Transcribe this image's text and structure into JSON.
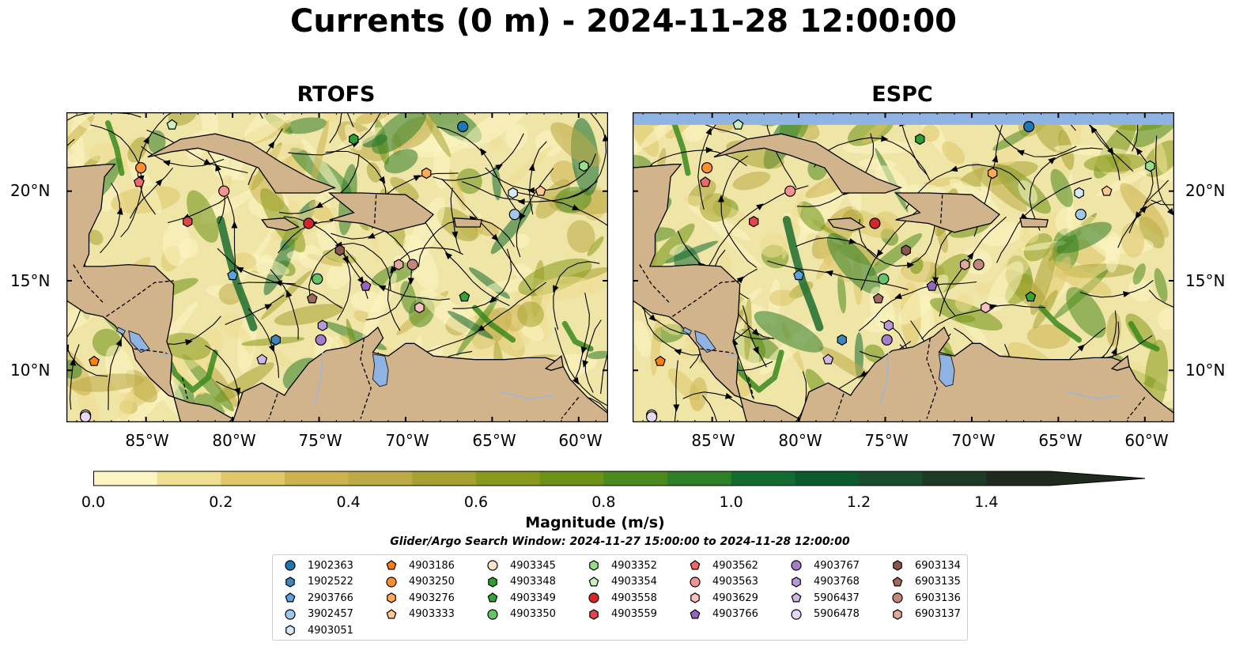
{
  "title": "Currents (0 m) - 2024-11-28 12:00:00",
  "panels": [
    {
      "id": "rtofs",
      "title": "RTOFS"
    },
    {
      "id": "espc",
      "title": "ESPC"
    }
  ],
  "axes": {
    "lon_ticks": [
      "85°W",
      "80°W",
      "75°W",
      "70°W",
      "65°W",
      "60°W"
    ],
    "lat_ticks": [
      "20°N",
      "15°N",
      "10°N"
    ],
    "lon_range": [
      -89.6,
      -58.3
    ],
    "lat_range": [
      7.1,
      24.4
    ]
  },
  "colorbar": {
    "label": "Magnitude (m/s)",
    "min": 0.0,
    "max": 1.5,
    "extend": "max",
    "ticks": [
      "0.0",
      "0.2",
      "0.4",
      "0.6",
      "0.8",
      "1.0",
      "1.2",
      "1.4"
    ],
    "colors": [
      "#fcf6c3",
      "#eedf92",
      "#dfc76a",
      "#ccb34e",
      "#bcaa46",
      "#a5a231",
      "#889a1c",
      "#6b9214",
      "#4c8a1e",
      "#2f7e28",
      "#136b31",
      "#0a5b2f",
      "#1a4d2e",
      "#1d3b24",
      "#1e2b1c"
    ]
  },
  "search_window": "Glider/Argo Search Window: 2024-11-27 15:00:00 to 2024-11-28 12:00:00",
  "land_color": "#d2b48c",
  "ocean_mask_color": "#8fb4e3",
  "floats": [
    {
      "id": "1902363",
      "marker": "circle",
      "color": "#1f77b4",
      "lon": -66.7,
      "lat": 23.6
    },
    {
      "id": "1902522",
      "marker": "hexagon",
      "color": "#3f86be",
      "lon": -77.5,
      "lat": 11.7
    },
    {
      "id": "2903766",
      "marker": "pentagon",
      "color": "#5aa3e0",
      "lon": -80.0,
      "lat": 15.3
    },
    {
      "id": "3902457",
      "marker": "circle",
      "color": "#9ec9ec",
      "lon": -63.7,
      "lat": 18.7
    },
    {
      "id": "4903051",
      "marker": "hexagon",
      "color": "#d6e9f7",
      "lon": -63.8,
      "lat": 19.9
    },
    {
      "id": "4903186",
      "marker": "pentagon",
      "color": "#ff7f0e",
      "lon": -88.0,
      "lat": 10.5
    },
    {
      "id": "4903250",
      "marker": "circle",
      "color": "#ff8f2e",
      "lon": -85.3,
      "lat": 21.3
    },
    {
      "id": "4903276",
      "marker": "hexagon",
      "color": "#ffaa58",
      "lon": -68.8,
      "lat": 21.0
    },
    {
      "id": "4903333",
      "marker": "pentagon",
      "color": "#ffc794",
      "lon": -62.2,
      "lat": 20.0
    },
    {
      "id": "4903345",
      "marker": "circle",
      "color": "#ffe3c9",
      "lon": -88.5,
      "lat": 7.5
    },
    {
      "id": "4903348",
      "marker": "hexagon",
      "color": "#2ca02c",
      "lon": -73.0,
      "lat": 22.9
    },
    {
      "id": "4903349",
      "marker": "pentagon",
      "color": "#33a533",
      "lon": -66.6,
      "lat": 14.1
    },
    {
      "id": "4903350",
      "marker": "circle",
      "color": "#66c466",
      "lon": -75.1,
      "lat": 15.1
    },
    {
      "id": "4903352",
      "marker": "hexagon",
      "color": "#98df8a",
      "lon": -59.7,
      "lat": 21.4
    },
    {
      "id": "4903354",
      "marker": "pentagon",
      "color": "#c7f2c0",
      "lon": -83.5,
      "lat": 23.7
    },
    {
      "id": "4903558",
      "marker": "circle",
      "color": "#d62728",
      "lon": -75.6,
      "lat": 18.2
    },
    {
      "id": "4903559",
      "marker": "hexagon",
      "color": "#e24648",
      "lon": -82.6,
      "lat": 18.3
    },
    {
      "id": "4903562",
      "marker": "pentagon",
      "color": "#ee6a6a",
      "lon": -85.4,
      "lat": 20.5
    },
    {
      "id": "4903563",
      "marker": "circle",
      "color": "#f29494",
      "lon": -80.5,
      "lat": 20.0
    },
    {
      "id": "4903629",
      "marker": "hexagon",
      "color": "#f8c0c0",
      "lon": -69.2,
      "lat": 13.5
    },
    {
      "id": "4903766",
      "marker": "pentagon",
      "color": "#9467bd",
      "lon": -72.3,
      "lat": 14.7
    },
    {
      "id": "4903767",
      "marker": "circle",
      "color": "#a47ec8",
      "lon": -74.9,
      "lat": 11.7
    },
    {
      "id": "4903768",
      "marker": "hexagon",
      "color": "#b898d6",
      "lon": -74.8,
      "lat": 12.5
    },
    {
      "id": "5906437",
      "marker": "pentagon",
      "color": "#cfb8e6",
      "lon": -78.3,
      "lat": 10.6
    },
    {
      "id": "5906478",
      "marker": "circle",
      "color": "#e6d8f3",
      "lon": -88.5,
      "lat": 7.4
    },
    {
      "id": "6903134",
      "marker": "hexagon",
      "color": "#8c564b",
      "lon": -73.8,
      "lat": 16.7
    },
    {
      "id": "6903135",
      "marker": "pentagon",
      "color": "#a26a5d",
      "lon": -75.4,
      "lat": 14.0
    },
    {
      "id": "6903136",
      "marker": "circle",
      "color": "#c4887b",
      "lon": -69.6,
      "lat": 15.9
    },
    {
      "id": "6903137",
      "marker": "hexagon",
      "color": "#e2aa9c",
      "lon": -70.4,
      "lat": 15.9
    }
  ]
}
